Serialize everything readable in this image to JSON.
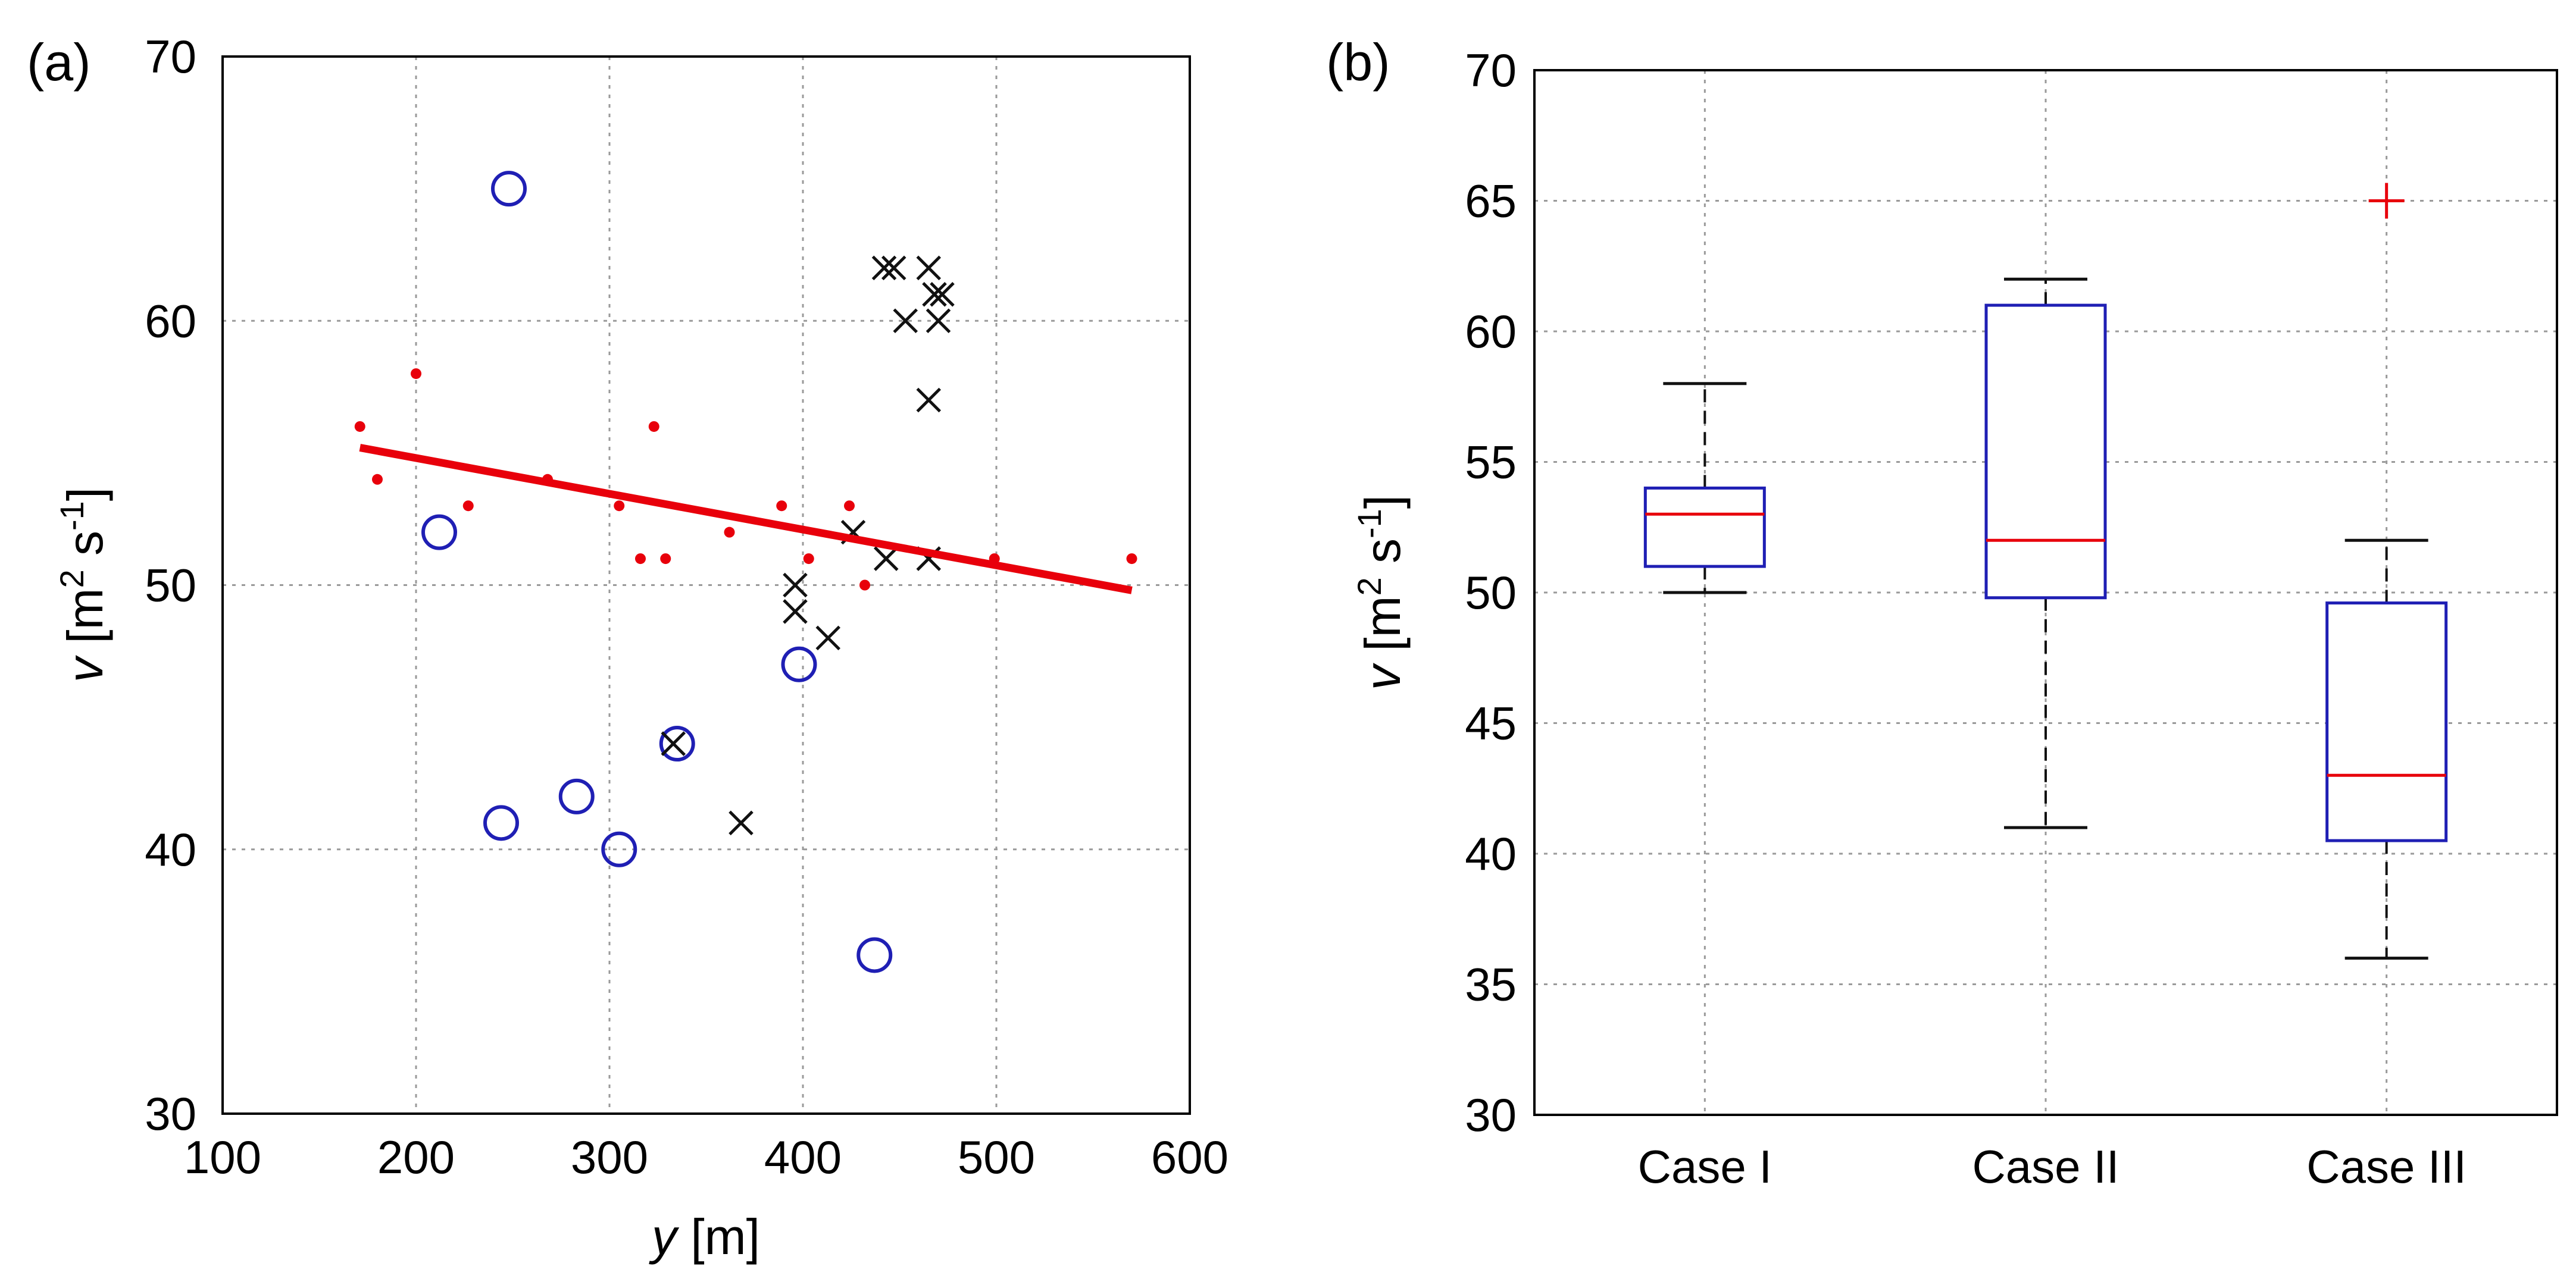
{
  "chart_data": [
    {
      "panel": "(a)",
      "type": "scatter",
      "xlabel": {
        "sym": "y",
        "unit": " [m]"
      },
      "ylabel": {
        "sym": "v",
        "pre": " [m",
        "sup1": "2",
        "mid": " s",
        "sup2": "-1",
        "post": "]"
      },
      "xlim": [
        100,
        600
      ],
      "ylim": [
        30,
        70
      ],
      "xticks": [
        100,
        200,
        300,
        400,
        500,
        600
      ],
      "yticks": [
        30,
        40,
        50,
        60,
        70
      ],
      "grid": true,
      "colors": {
        "dots": "#e8000b",
        "circles": "#1f1fb4",
        "crosses": "#111111",
        "fit": "#e8000b"
      },
      "series": [
        {
          "name": "red dots",
          "marker": "dot",
          "points": [
            [
              171,
              56
            ],
            [
              180,
              54
            ],
            [
              200,
              58
            ],
            [
              227,
              53
            ],
            [
              268,
              54
            ],
            [
              305,
              53
            ],
            [
              316,
              51
            ],
            [
              323,
              56
            ],
            [
              329,
              51
            ],
            [
              362,
              52
            ],
            [
              389,
              53
            ],
            [
              403,
              51
            ],
            [
              424,
              53
            ],
            [
              432,
              50
            ],
            [
              499,
              51
            ],
            [
              570,
              51
            ]
          ]
        },
        {
          "name": "blue circles",
          "marker": "circle",
          "points": [
            [
              248,
              65
            ],
            [
              212,
              52
            ],
            [
              244,
              41
            ],
            [
              283,
              42
            ],
            [
              305,
              40
            ],
            [
              335,
              44
            ],
            [
              398,
              47
            ],
            [
              437,
              36
            ]
          ]
        },
        {
          "name": "black crosses",
          "marker": "cross",
          "points": [
            [
              442,
              62
            ],
            [
              447,
              62
            ],
            [
              465,
              62
            ],
            [
              468,
              61
            ],
            [
              472,
              61
            ],
            [
              453,
              60
            ],
            [
              470,
              60
            ],
            [
              465,
              57
            ],
            [
              426,
              52
            ],
            [
              443,
              51
            ],
            [
              465,
              51
            ],
            [
              396,
              50
            ],
            [
              396,
              49
            ],
            [
              413,
              48
            ],
            [
              333,
              44
            ],
            [
              368,
              41
            ]
          ]
        },
        {
          "name": "linear fit",
          "marker": "line",
          "points": [
            [
              171,
              55.2
            ],
            [
              570,
              49.8
            ]
          ]
        }
      ]
    },
    {
      "panel": "(b)",
      "type": "box",
      "ylabel": {
        "sym": "v",
        "pre": " [m",
        "sup1": "2",
        "mid": " s",
        "sup2": "-1",
        "post": "]"
      },
      "ylim": [
        30,
        70
      ],
      "yticks": [
        30,
        35,
        40,
        45,
        50,
        55,
        60,
        65,
        70
      ],
      "categories": [
        "Case I",
        "Case II",
        "Case III"
      ],
      "grid": true,
      "colors": {
        "box": "#1f1fb4",
        "median": "#e8000b",
        "whisker": "#111111",
        "outlier": "#e8000b"
      },
      "boxes": [
        {
          "q1": 51,
          "median": 53,
          "q3": 54,
          "whisker_low": 50,
          "whisker_high": 58,
          "outliers": []
        },
        {
          "q1": 49.8,
          "median": 52,
          "q3": 61,
          "whisker_low": 41,
          "whisker_high": 62,
          "outliers": []
        },
        {
          "q1": 40.5,
          "median": 43,
          "q3": 49.6,
          "whisker_low": 36,
          "whisker_high": 52,
          "outliers": [
            65
          ]
        }
      ]
    }
  ]
}
